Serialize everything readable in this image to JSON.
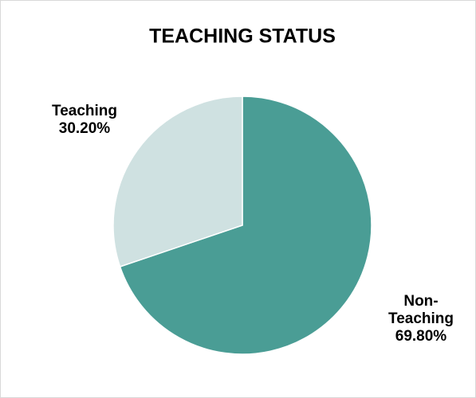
{
  "chart_data": {
    "type": "pie",
    "title": "TEACHING STATUS",
    "categories": [
      "Non-Teaching",
      "Teaching"
    ],
    "values": [
      69.8,
      30.2
    ],
    "value_labels": [
      "69.80%",
      "30.20%"
    ],
    "colors": [
      "#4a9d95",
      "#cfe1e1"
    ]
  }
}
